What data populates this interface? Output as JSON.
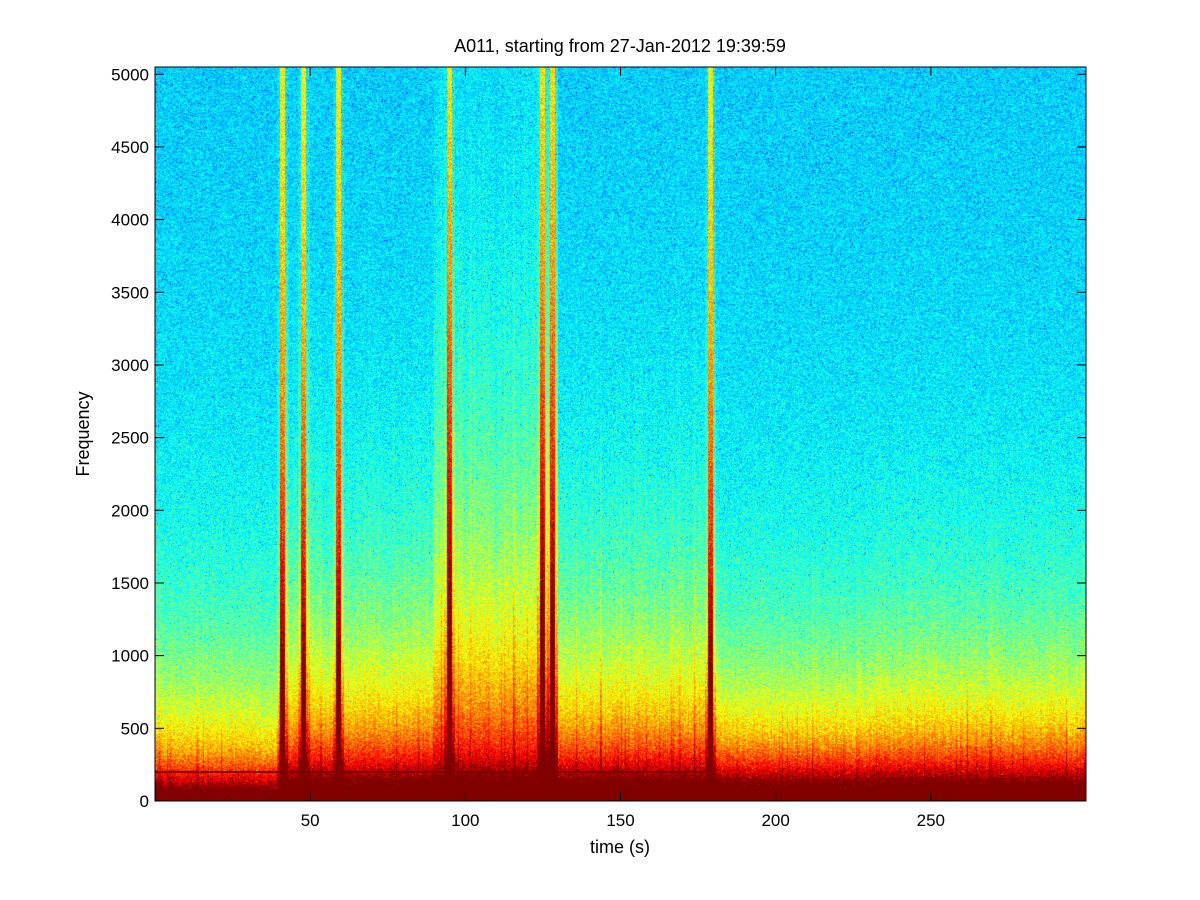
{
  "chart_data": {
    "type": "heatmap",
    "title": "A011, starting from 27-Jan-2012 19:39:59",
    "xlabel": "time (s)",
    "ylabel": "Frequency",
    "xlim": [
      0,
      300
    ],
    "ylim": [
      0,
      5050
    ],
    "xticks": [
      50,
      100,
      150,
      200,
      250
    ],
    "yticks": [
      0,
      500,
      1000,
      1500,
      2000,
      2500,
      3000,
      3500,
      4000,
      4500,
      5000
    ],
    "grid": false,
    "colormap": "jet",
    "color_range": [
      "#0000ff",
      "#00ffff",
      "#ffff00",
      "#ff0000"
    ],
    "broadband_events_s": [
      41,
      48,
      59,
      95,
      125,
      128,
      179
    ],
    "low_frequency_tone_lines_hz": [
      40,
      70,
      200
    ],
    "activity_bands": [
      {
        "start": 0,
        "end": 40,
        "top_hz": 600
      },
      {
        "start": 40,
        "end": 180,
        "top_hz": 1000
      },
      {
        "start": 90,
        "end": 130,
        "top_hz": 2000
      },
      {
        "start": 180,
        "end": 230,
        "top_hz": 600
      },
      {
        "start": 230,
        "end": 300,
        "top_hz": 700
      }
    ]
  }
}
